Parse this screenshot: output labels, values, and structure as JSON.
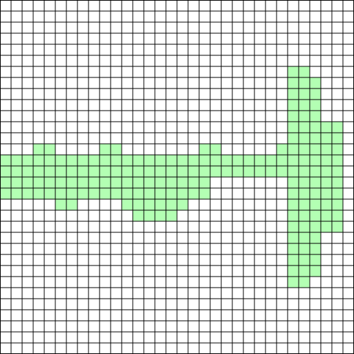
{
  "board": {
    "columns": 32,
    "rows": 32,
    "background_color": "#ffffff",
    "grid_line_color": "#000000",
    "fill_color": "#b3ffb3",
    "filled_rows": [
      {
        "row": 6,
        "cols": [
          [
            26,
            27
          ]
        ]
      },
      {
        "row": 7,
        "cols": [
          [
            26,
            28
          ]
        ]
      },
      {
        "row": 8,
        "cols": [
          [
            26,
            28
          ]
        ]
      },
      {
        "row": 9,
        "cols": [
          [
            26,
            28
          ]
        ]
      },
      {
        "row": 10,
        "cols": [
          [
            26,
            28
          ]
        ]
      },
      {
        "row": 11,
        "cols": [
          [
            26,
            30
          ]
        ]
      },
      {
        "row": 12,
        "cols": [
          [
            26,
            30
          ]
        ]
      },
      {
        "row": 13,
        "cols": [
          [
            3,
            4
          ],
          [
            9,
            10
          ],
          [
            18,
            19
          ],
          [
            25,
            30
          ]
        ]
      },
      {
        "row": 14,
        "cols": [
          [
            0,
            30
          ]
        ]
      },
      {
        "row": 15,
        "cols": [
          [
            0,
            30
          ]
        ]
      },
      {
        "row": 16,
        "cols": [
          [
            0,
            18
          ],
          [
            26,
            30
          ]
        ]
      },
      {
        "row": 17,
        "cols": [
          [
            0,
            18
          ],
          [
            26,
            30
          ]
        ]
      },
      {
        "row": 18,
        "cols": [
          [
            5,
            6
          ],
          [
            11,
            16
          ],
          [
            26,
            30
          ]
        ]
      },
      {
        "row": 19,
        "cols": [
          [
            12,
            15
          ],
          [
            26,
            30
          ]
        ]
      },
      {
        "row": 20,
        "cols": [
          [
            26,
            30
          ]
        ]
      },
      {
        "row": 21,
        "cols": [
          [
            26,
            28
          ]
        ]
      },
      {
        "row": 22,
        "cols": [
          [
            26,
            28
          ]
        ]
      },
      {
        "row": 23,
        "cols": [
          [
            26,
            28
          ]
        ]
      },
      {
        "row": 24,
        "cols": [
          [
            26,
            28
          ]
        ]
      },
      {
        "row": 25,
        "cols": [
          [
            26,
            27
          ]
        ]
      }
    ]
  }
}
